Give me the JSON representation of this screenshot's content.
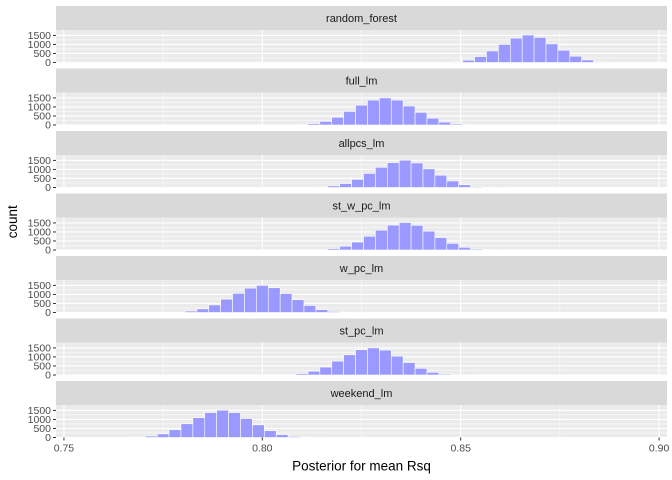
{
  "chart_data": {
    "type": "bar",
    "xlabel": "Posterior for mean Rsq",
    "ylabel": "count",
    "xlim": [
      0.748,
      0.902
    ],
    "ylim": [
      0,
      1800
    ],
    "x_ticks": [
      0.75,
      0.8,
      0.85,
      0.9
    ],
    "x_tick_labels": [
      "0.75",
      "0.80",
      "0.85",
      "0.90"
    ],
    "y_ticks": [
      0,
      500,
      1000,
      1500
    ],
    "y_tick_labels": [
      "0",
      "500",
      "1000",
      "1500"
    ],
    "bin_width": 0.003,
    "grid": true,
    "colors": {
      "bar_fill": "#9999ff",
      "bar_outline": "#ffffff",
      "panel": "#ebebeb",
      "strip": "#d9d9d9",
      "grid": "#ffffff"
    },
    "panels": [
      {
        "name": "random_forest",
        "x": [
          0.846,
          0.849,
          0.852,
          0.855,
          0.858,
          0.861,
          0.864,
          0.867,
          0.87,
          0.873,
          0.876,
          0.879,
          0.882,
          0.885,
          0.888
        ],
        "values": [
          10,
          40,
          130,
          330,
          640,
          1000,
          1350,
          1520,
          1390,
          1030,
          680,
          350,
          140,
          40,
          10
        ]
      },
      {
        "name": "full_lm",
        "x": [
          0.81,
          0.813,
          0.816,
          0.819,
          0.822,
          0.825,
          0.828,
          0.831,
          0.834,
          0.837,
          0.84,
          0.843,
          0.846,
          0.849,
          0.852,
          0.855
        ],
        "values": [
          20,
          80,
          200,
          430,
          750,
          1100,
          1380,
          1500,
          1380,
          1050,
          700,
          380,
          160,
          60,
          20,
          5
        ]
      },
      {
        "name": "allpcs_lm",
        "x": [
          0.815,
          0.818,
          0.821,
          0.824,
          0.827,
          0.83,
          0.833,
          0.836,
          0.839,
          0.842,
          0.845,
          0.848,
          0.851,
          0.854,
          0.857,
          0.86
        ],
        "values": [
          20,
          90,
          220,
          450,
          780,
          1120,
          1380,
          1510,
          1360,
          1030,
          680,
          360,
          150,
          50,
          15,
          5
        ]
      },
      {
        "name": "st_w_pc_lm",
        "x": [
          0.815,
          0.818,
          0.821,
          0.824,
          0.827,
          0.83,
          0.833,
          0.836,
          0.839,
          0.842,
          0.845,
          0.848,
          0.851,
          0.854,
          0.857,
          0.86
        ],
        "values": [
          20,
          80,
          210,
          440,
          760,
          1100,
          1380,
          1520,
          1370,
          1040,
          690,
          370,
          150,
          55,
          15,
          5
        ]
      },
      {
        "name": "w_pc_lm",
        "x": [
          0.779,
          0.782,
          0.785,
          0.788,
          0.791,
          0.794,
          0.797,
          0.8,
          0.803,
          0.806,
          0.809,
          0.812,
          0.815,
          0.818,
          0.821,
          0.824
        ],
        "values": [
          20,
          80,
          200,
          420,
          740,
          1060,
          1350,
          1500,
          1370,
          1050,
          710,
          390,
          160,
          60,
          20,
          5
        ]
      },
      {
        "name": "st_pc_lm",
        "x": [
          0.807,
          0.81,
          0.813,
          0.816,
          0.819,
          0.822,
          0.825,
          0.828,
          0.831,
          0.834,
          0.837,
          0.84,
          0.843,
          0.846,
          0.849,
          0.852
        ],
        "values": [
          20,
          80,
          210,
          440,
          770,
          1120,
          1400,
          1500,
          1380,
          1040,
          690,
          370,
          150,
          55,
          15,
          5
        ]
      },
      {
        "name": "weekend_lm",
        "x": [
          0.769,
          0.772,
          0.775,
          0.778,
          0.781,
          0.784,
          0.787,
          0.79,
          0.793,
          0.796,
          0.799,
          0.802,
          0.805,
          0.808,
          0.811,
          0.814
        ],
        "values": [
          20,
          80,
          200,
          430,
          760,
          1100,
          1380,
          1510,
          1380,
          1050,
          700,
          380,
          160,
          60,
          20,
          5
        ]
      }
    ]
  }
}
